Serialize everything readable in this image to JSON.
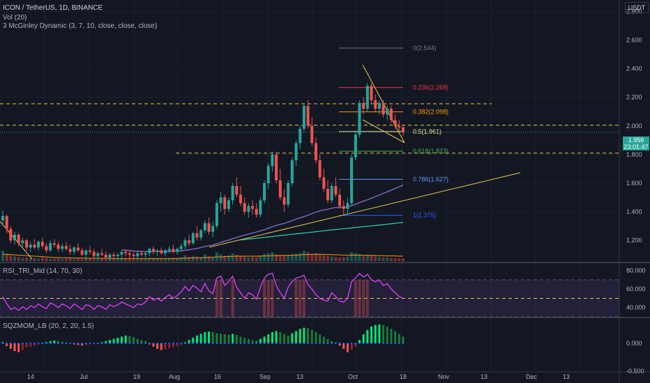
{
  "header": {
    "title": "ICON / TetherUS, 1D, BINANCE",
    "vol_label": "Vol (20)",
    "mcginley_label": "3 McGinley Dynamic (3, 7, 10, close, close, close)",
    "currency": "USDT"
  },
  "last_price": {
    "value": "1.956",
    "countdown": "23:01:47",
    "color": "#26a69a"
  },
  "chart_data": [
    {
      "type": "candlestick",
      "title": "ICON / TetherUS, 1D, BINANCE",
      "y_ticks": [
        "2.800",
        "2.600",
        "2.400",
        "2.200",
        "2.000",
        "1.800",
        "1.600",
        "1.400",
        "1.200"
      ],
      "ylim": [
        1.05,
        2.88
      ],
      "x_ticks": [
        "14",
        "Jul",
        "19",
        "Aug",
        "16",
        "Sep",
        "13",
        "Oct",
        "18",
        "Nov",
        "13",
        "Dec",
        "13"
      ],
      "fib_levels": [
        {
          "label": "0(2.544)",
          "value": 2.544,
          "color": "#787b86"
        },
        {
          "label": "0.236(2.268)",
          "value": 2.268,
          "color": "#f23645"
        },
        {
          "label": "0.382(2.098)",
          "value": 2.098,
          "color": "#ff9800"
        },
        {
          "label": "0.5(1.961)",
          "value": 1.961,
          "color": "#f0e68c"
        },
        {
          "label": "0.618(1.823)",
          "value": 1.823,
          "color": "#4caf50"
        },
        {
          "label": "0.786(1.627)",
          "value": 1.627,
          "color": "#5b9cf6"
        },
        {
          "label": "1(1.375)",
          "value": 1.375,
          "color": "#2962ff"
        }
      ],
      "horizontal_levels": [
        2.155,
        2.005,
        1.81
      ],
      "candles": [
        [
          1.34,
          1.41,
          1.3,
          1.37
        ],
        [
          1.37,
          1.38,
          1.25,
          1.28
        ],
        [
          1.28,
          1.3,
          1.18,
          1.2
        ],
        [
          1.2,
          1.26,
          1.17,
          1.24
        ],
        [
          1.24,
          1.25,
          1.16,
          1.18
        ],
        [
          1.18,
          1.22,
          1.14,
          1.2
        ],
        [
          1.2,
          1.21,
          1.13,
          1.15
        ],
        [
          1.15,
          1.19,
          1.12,
          1.17
        ],
        [
          1.17,
          1.21,
          1.14,
          1.15
        ],
        [
          1.15,
          1.2,
          1.13,
          1.19
        ],
        [
          1.19,
          1.22,
          1.14,
          1.16
        ],
        [
          1.16,
          1.18,
          1.11,
          1.13
        ],
        [
          1.13,
          1.2,
          1.12,
          1.18
        ],
        [
          1.18,
          1.21,
          1.15,
          1.17
        ],
        [
          1.17,
          1.19,
          1.12,
          1.14
        ],
        [
          1.14,
          1.18,
          1.12,
          1.16
        ],
        [
          1.16,
          1.19,
          1.13,
          1.14
        ],
        [
          1.14,
          1.17,
          1.1,
          1.12
        ],
        [
          1.12,
          1.16,
          1.1,
          1.15
        ],
        [
          1.15,
          1.18,
          1.12,
          1.13
        ],
        [
          1.13,
          1.15,
          1.09,
          1.1
        ],
        [
          1.1,
          1.14,
          1.08,
          1.13
        ],
        [
          1.13,
          1.16,
          1.1,
          1.12
        ],
        [
          1.12,
          1.14,
          1.08,
          1.09
        ],
        [
          1.09,
          1.12,
          1.07,
          1.11
        ],
        [
          1.11,
          1.14,
          1.09,
          1.1
        ],
        [
          1.1,
          1.12,
          1.07,
          1.08
        ],
        [
          1.08,
          1.11,
          1.06,
          1.1
        ],
        [
          1.1,
          1.12,
          1.07,
          1.09
        ],
        [
          1.09,
          1.11,
          1.07,
          1.1
        ],
        [
          1.1,
          1.13,
          1.08,
          1.12
        ],
        [
          1.12,
          1.14,
          1.09,
          1.11
        ],
        [
          1.11,
          1.13,
          1.08,
          1.1
        ],
        [
          1.1,
          1.12,
          1.07,
          1.09
        ],
        [
          1.09,
          1.12,
          1.07,
          1.11
        ],
        [
          1.11,
          1.13,
          1.09,
          1.1
        ],
        [
          1.1,
          1.12,
          1.08,
          1.11
        ],
        [
          1.11,
          1.15,
          1.09,
          1.14
        ],
        [
          1.14,
          1.16,
          1.1,
          1.12
        ],
        [
          1.12,
          1.14,
          1.09,
          1.13
        ],
        [
          1.13,
          1.15,
          1.1,
          1.11
        ],
        [
          1.11,
          1.14,
          1.09,
          1.13
        ],
        [
          1.13,
          1.16,
          1.11,
          1.14
        ],
        [
          1.14,
          1.17,
          1.11,
          1.12
        ],
        [
          1.12,
          1.15,
          1.1,
          1.14
        ],
        [
          1.14,
          1.18,
          1.12,
          1.16
        ],
        [
          1.16,
          1.22,
          1.14,
          1.2
        ],
        [
          1.2,
          1.24,
          1.16,
          1.18
        ],
        [
          1.18,
          1.26,
          1.17,
          1.25
        ],
        [
          1.25,
          1.3,
          1.2,
          1.22
        ],
        [
          1.22,
          1.28,
          1.2,
          1.27
        ],
        [
          1.27,
          1.34,
          1.25,
          1.32
        ],
        [
          1.32,
          1.36,
          1.24,
          1.26
        ],
        [
          1.26,
          1.33,
          1.22,
          1.3
        ],
        [
          1.3,
          1.48,
          1.28,
          1.46
        ],
        [
          1.46,
          1.54,
          1.4,
          1.5
        ],
        [
          1.5,
          1.52,
          1.38,
          1.42
        ],
        [
          1.42,
          1.5,
          1.4,
          1.48
        ],
        [
          1.48,
          1.6,
          1.45,
          1.58
        ],
        [
          1.58,
          1.64,
          1.5,
          1.52
        ],
        [
          1.52,
          1.58,
          1.44,
          1.46
        ],
        [
          1.46,
          1.5,
          1.38,
          1.4
        ],
        [
          1.4,
          1.46,
          1.36,
          1.44
        ],
        [
          1.44,
          1.48,
          1.38,
          1.42
        ],
        [
          1.42,
          1.46,
          1.36,
          1.38
        ],
        [
          1.38,
          1.5,
          1.36,
          1.48
        ],
        [
          1.48,
          1.62,
          1.46,
          1.6
        ],
        [
          1.6,
          1.74,
          1.56,
          1.72
        ],
        [
          1.72,
          1.82,
          1.68,
          1.8
        ],
        [
          1.8,
          1.82,
          1.6,
          1.62
        ],
        [
          1.62,
          1.7,
          1.48,
          1.5
        ],
        [
          1.5,
          1.56,
          1.4,
          1.45
        ],
        [
          1.45,
          1.62,
          1.43,
          1.6
        ],
        [
          1.6,
          1.78,
          1.58,
          1.76
        ],
        [
          1.76,
          1.9,
          1.72,
          1.88
        ],
        [
          1.88,
          2.0,
          1.84,
          1.98
        ],
        [
          1.98,
          2.16,
          1.96,
          2.14
        ],
        [
          2.14,
          2.18,
          1.98,
          2.0
        ],
        [
          2.0,
          2.06,
          1.86,
          1.88
        ],
        [
          1.88,
          1.92,
          1.74,
          1.76
        ],
        [
          1.76,
          1.8,
          1.62,
          1.64
        ],
        [
          1.64,
          1.7,
          1.54,
          1.56
        ],
        [
          1.56,
          1.62,
          1.46,
          1.48
        ],
        [
          1.48,
          1.6,
          1.46,
          1.58
        ],
        [
          1.58,
          1.64,
          1.5,
          1.52
        ],
        [
          1.52,
          1.56,
          1.42,
          1.44
        ],
        [
          1.44,
          1.48,
          1.38,
          1.42
        ],
        [
          1.42,
          1.5,
          1.38,
          1.46
        ],
        [
          1.46,
          1.8,
          1.44,
          1.78
        ],
        [
          1.78,
          1.96,
          1.76,
          1.94
        ],
        [
          1.94,
          2.18,
          1.92,
          2.16
        ],
        [
          2.16,
          2.2,
          2.08,
          2.12
        ],
        [
          2.12,
          2.3,
          2.1,
          2.28
        ],
        [
          2.28,
          2.3,
          2.16,
          2.18
        ],
        [
          2.18,
          2.22,
          2.1,
          2.12
        ],
        [
          2.12,
          2.18,
          2.08,
          2.16
        ],
        [
          2.16,
          2.18,
          2.06,
          2.08
        ],
        [
          2.08,
          2.14,
          2.04,
          2.12
        ],
        [
          2.12,
          2.14,
          2.02,
          2.04
        ],
        [
          2.04,
          2.08,
          1.98,
          2.0
        ],
        [
          2.0,
          2.04,
          1.96,
          1.99
        ],
        [
          1.99,
          2.0,
          1.93,
          1.956
        ]
      ],
      "volume": [
        40,
        28,
        22,
        18,
        16,
        12,
        14,
        10,
        12,
        10,
        14,
        12,
        9,
        10,
        12,
        8,
        10,
        12,
        9,
        10,
        8,
        10,
        9,
        8,
        8,
        10,
        7,
        8,
        9,
        8,
        10,
        9,
        8,
        7,
        8,
        8,
        9,
        12,
        10,
        9,
        8,
        9,
        10,
        12,
        11,
        14,
        22,
        16,
        20,
        18,
        14,
        26,
        18,
        14,
        34,
        26,
        20,
        22,
        30,
        24,
        20,
        18,
        14,
        16,
        15,
        22,
        28,
        30,
        34,
        26,
        24,
        20,
        22,
        26,
        28,
        30,
        40,
        34,
        26,
        30,
        28,
        22,
        20,
        18,
        16,
        14,
        16,
        18,
        34,
        30,
        26,
        20,
        24,
        22,
        18,
        16,
        14,
        14,
        12,
        12,
        11,
        10
      ],
      "vol_ma": [
        26,
        26,
        25,
        24,
        23,
        22,
        21,
        20,
        19,
        18,
        17,
        16,
        15,
        14,
        14,
        13,
        13,
        13,
        12,
        12,
        12,
        11,
        11,
        11,
        11,
        11,
        10,
        10,
        10,
        10,
        10,
        10,
        10,
        10,
        10,
        10,
        10,
        10,
        10,
        10,
        10,
        10,
        10,
        10,
        10,
        11,
        11,
        12,
        12,
        13,
        13,
        14,
        14,
        15,
        16,
        16,
        17,
        18,
        18,
        19,
        19,
        19,
        19,
        19,
        19,
        19,
        20,
        20,
        21,
        21,
        22,
        22,
        22,
        23,
        23,
        24,
        25,
        25,
        26,
        26,
        26,
        26,
        25,
        25,
        24,
        24,
        23,
        23,
        23,
        23,
        23,
        23,
        22,
        22,
        22,
        21,
        21,
        20,
        20,
        20,
        19,
        19
      ]
    },
    {
      "type": "line",
      "title": "RSI_TRI_Mid (14, 70, 30)",
      "y_ticks": [
        "80.000",
        "60.000",
        "40.000"
      ],
      "ylim": [
        30,
        88
      ],
      "levels": [
        70,
        50,
        30
      ],
      "values": [
        52,
        44,
        38,
        40,
        37,
        41,
        38,
        42,
        40,
        44,
        41,
        39,
        45,
        43,
        40,
        44,
        42,
        39,
        44,
        41,
        38,
        43,
        42,
        38,
        42,
        41,
        38,
        43,
        41,
        43,
        46,
        44,
        42,
        40,
        44,
        43,
        46,
        52,
        48,
        50,
        47,
        51,
        54,
        50,
        53,
        57,
        63,
        58,
        64,
        61,
        57,
        66,
        58,
        55,
        72,
        74,
        64,
        68,
        74,
        62,
        56,
        50,
        56,
        54,
        49,
        62,
        72,
        76,
        77,
        64,
        56,
        50,
        62,
        68,
        72,
        73,
        75,
        65,
        60,
        54,
        50,
        48,
        47,
        56,
        52,
        47,
        46,
        50,
        68,
        72,
        77,
        73,
        76,
        70,
        68,
        70,
        64,
        66,
        60,
        56,
        52,
        50
      ]
    },
    {
      "type": "bar",
      "title": "SQZMOM_LB (20, 2, 20, 1.5)",
      "y_ticks": [
        "0.000",
        "-0.500"
      ],
      "ylim": [
        -0.5,
        0.45
      ],
      "values": [
        0.02,
        -0.05,
        -0.1,
        -0.14,
        -0.16,
        -0.12,
        -0.08,
        -0.06,
        -0.04,
        -0.02,
        0.01,
        0.02,
        0.04,
        0.05,
        0.04,
        0.03,
        0.02,
        0.01,
        -0.02,
        -0.03,
        -0.04,
        -0.03,
        -0.02,
        -0.01,
        0.0,
        0.02,
        0.04,
        0.06,
        0.08,
        0.1,
        0.12,
        0.14,
        0.13,
        0.11,
        0.08,
        0.06,
        0.04,
        -0.02,
        -0.06,
        -0.1,
        -0.12,
        -0.11,
        -0.09,
        -0.07,
        -0.05,
        -0.03,
        0.02,
        0.06,
        0.1,
        0.14,
        0.17,
        0.2,
        0.21,
        0.2,
        0.18,
        0.17,
        0.16,
        0.15,
        0.17,
        0.15,
        0.12,
        0.1,
        0.08,
        0.06,
        0.05,
        0.08,
        0.12,
        0.16,
        0.2,
        0.22,
        0.2,
        0.17,
        0.14,
        0.18,
        0.22,
        0.26,
        0.28,
        0.27,
        0.24,
        0.2,
        0.16,
        0.12,
        0.08,
        0.04,
        0.02,
        -0.04,
        -0.1,
        -0.16,
        -0.12,
        -0.06,
        0.06,
        0.16,
        0.24,
        0.3,
        0.33,
        0.34,
        0.33,
        0.3,
        0.26,
        0.22,
        0.17,
        0.12
      ]
    }
  ],
  "x_ticks": [
    "14",
    "Jul",
    "19",
    "Aug",
    "16",
    "Sep",
    "13",
    "Oct",
    "18",
    "Nov",
    "13",
    "Dec",
    "13"
  ]
}
